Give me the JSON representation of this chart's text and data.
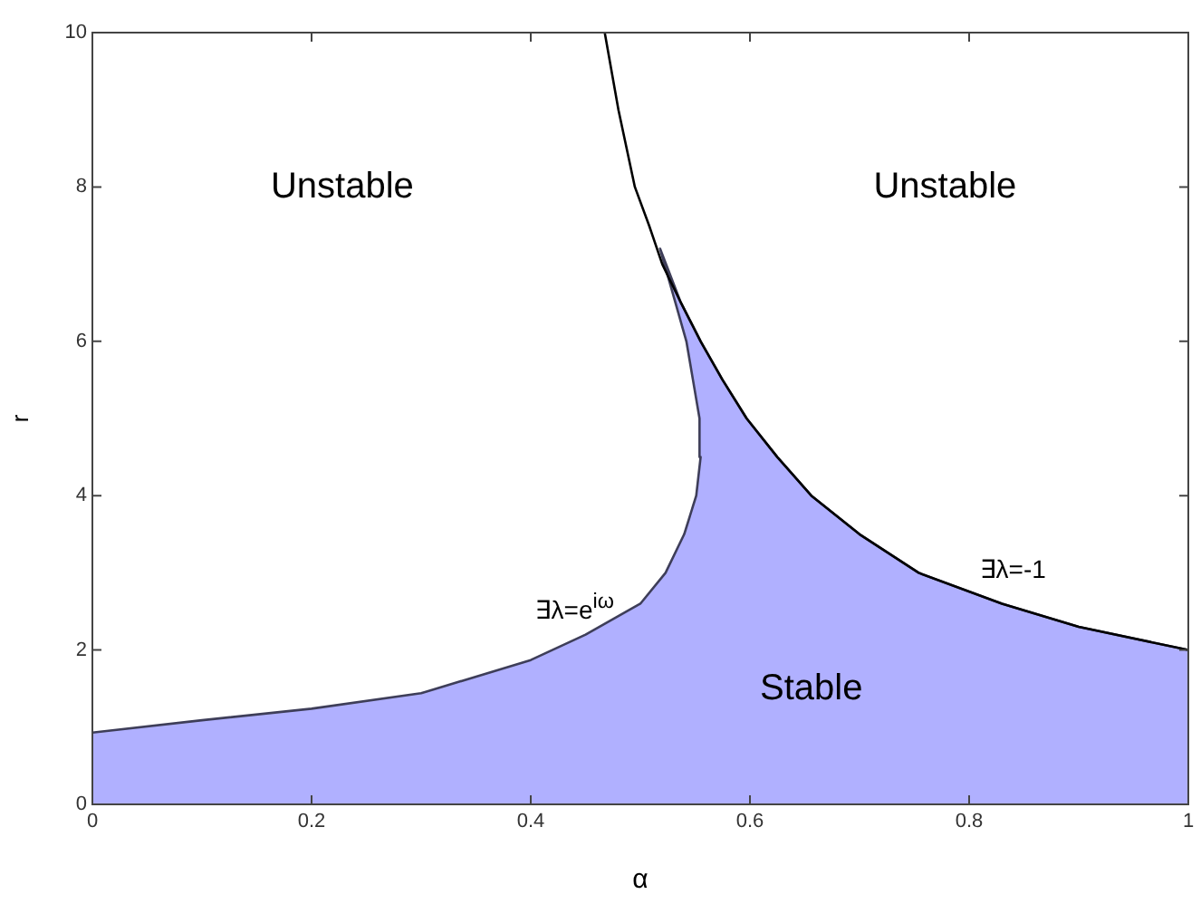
{
  "chart_data": {
    "type": "line",
    "xlabel": "α",
    "ylabel": "r",
    "xlim": [
      0,
      1
    ],
    "ylim": [
      0,
      10
    ],
    "xticks": [
      0,
      0.2,
      0.4,
      0.6,
      0.8,
      1
    ],
    "yticks": [
      0,
      2,
      4,
      6,
      8,
      10
    ],
    "grid": false,
    "legend": false,
    "series": [
      {
        "type": "area",
        "color": "#b0b0ff",
        "x": [
          0,
          0.1,
          0.2,
          0.3,
          0.4,
          0.45,
          0.5,
          0.523,
          0.54,
          0.551,
          0.555,
          0.554,
          0.548,
          0.542,
          0.532,
          0.522,
          0.518,
          0.537,
          0.555,
          0.575,
          0.597,
          0.625,
          0.656,
          0.7,
          0.754,
          0.83,
          0.9,
          1
        ],
        "values": [
          0.93,
          1.09,
          1.24,
          1.44,
          1.87,
          2.2,
          2.6,
          3.0,
          3.5,
          4.0,
          4.5,
          5.0,
          5.5,
          6.0,
          6.5,
          7.0,
          7.2,
          6.5,
          6,
          5.5,
          5,
          4.5,
          4,
          3.5,
          3,
          2.6,
          2.3,
          2
        ]
      },
      {
        "color": "#000000",
        "x": [
          0.4675,
          0.48,
          0.495,
          0.508,
          0.52,
          0.537,
          0.555,
          0.575,
          0.597,
          0.625,
          0.656,
          0.7,
          0.754,
          0.83,
          0.9,
          1
        ],
        "values": [
          10,
          9,
          8,
          7.5,
          7,
          6.5,
          6,
          5.5,
          5,
          4.5,
          4,
          3.5,
          3,
          2.6,
          2.3,
          2
        ]
      }
    ],
    "annotations": [
      "Unstable",
      "Unstable",
      "Stable",
      "∃λ=e$^{iω}$",
      "∃λ=-1"
    ]
  }
}
